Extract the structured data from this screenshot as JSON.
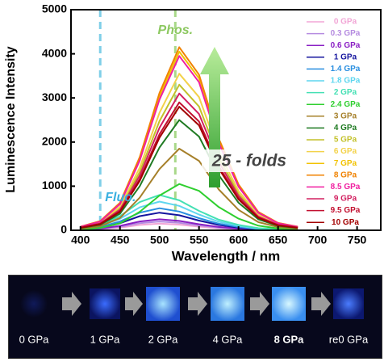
{
  "chart_data": {
    "type": "line",
    "x_label": "Wavelength / nm",
    "y_label": "Luminescence Intensity",
    "x": [
      400,
      425,
      450,
      475,
      500,
      525,
      550,
      575,
      600,
      625,
      650,
      675
    ],
    "xlim": [
      388,
      780
    ],
    "xticks": [
      400,
      450,
      500,
      550,
      600,
      650,
      700,
      750
    ],
    "ylim": [
      0,
      5000
    ],
    "yticks": [
      0,
      1000,
      2000,
      3000,
      4000,
      5000
    ],
    "legend": "right",
    "vlines": [
      {
        "x": 425,
        "label": "Fluo.",
        "color": "#7fcfe8"
      },
      {
        "x": 520,
        "label": "Phos.",
        "color": "#a9d88a"
      }
    ],
    "annotation": "25 - folds",
    "series": [
      {
        "name": "0 GPa",
        "color": "#f2a6d6",
        "values": [
          8,
          23,
          60,
          120,
          150,
          128,
          83,
          45,
          23,
          9,
          5,
          2
        ]
      },
      {
        "name": "0.3 GPa",
        "color": "#b58be0",
        "values": [
          10,
          30,
          80,
          160,
          200,
          170,
          110,
          60,
          30,
          12,
          6,
          2
        ]
      },
      {
        "name": "0.6 GPa",
        "color": "#8a1fc4",
        "values": [
          13,
          38,
          100,
          200,
          250,
          213,
          138,
          75,
          38,
          15,
          8,
          3
        ]
      },
      {
        "name": "1 GPa",
        "color": "#14149e",
        "values": [
          20,
          60,
          160,
          320,
          400,
          340,
          220,
          120,
          60,
          24,
          12,
          4
        ]
      },
      {
        "name": "1.4 GPa",
        "color": "#2a8fe0",
        "values": [
          25,
          75,
          200,
          400,
          500,
          425,
          275,
          150,
          75,
          30,
          15,
          5
        ]
      },
      {
        "name": "1.8 GPa",
        "color": "#5fd6ef",
        "values": [
          33,
          98,
          260,
          520,
          650,
          553,
          358,
          195,
          98,
          39,
          20,
          7
        ]
      },
      {
        "name": "2 GPa",
        "color": "#44e0b4",
        "values": [
          40,
          120,
          320,
          640,
          800,
          680,
          440,
          240,
          120,
          48,
          24,
          8
        ]
      },
      {
        "name": "2.4 GPa",
        "color": "#2fcf2f",
        "values": [
          21,
          53,
          158,
          420,
          788,
          1050,
          893,
          525,
          263,
          105,
          42,
          21
        ]
      },
      {
        "name": "3 GPa",
        "color": "#a6802a",
        "values": [
          37,
          93,
          278,
          740,
          1388,
          1850,
          1573,
          925,
          463,
          185,
          74,
          37
        ]
      },
      {
        "name": "4 GPa",
        "color": "#1f7a22",
        "values": [
          50,
          125,
          375,
          1000,
          1875,
          2500,
          2125,
          1250,
          625,
          250,
          100,
          50
        ]
      },
      {
        "name": "5 GPa",
        "color": "#c3c12a",
        "values": [
          66,
          165,
          495,
          1320,
          2475,
          3300,
          2805,
          1650,
          825,
          330,
          132,
          66
        ]
      },
      {
        "name": "6 GPa",
        "color": "#f3d24a",
        "values": [
          71,
          178,
          533,
          1420,
          2663,
          3550,
          3018,
          1775,
          888,
          355,
          142,
          71
        ]
      },
      {
        "name": "7 GPa",
        "color": "#f2c200",
        "values": [
          81,
          203,
          608,
          1620,
          3038,
          4050,
          3443,
          2025,
          1013,
          405,
          162,
          81
        ]
      },
      {
        "name": "8 GPa",
        "color": "#f08200",
        "values": [
          83,
          208,
          623,
          1660,
          3113,
          4150,
          3528,
          2075,
          1038,
          415,
          166,
          83
        ]
      },
      {
        "name": "8.5 GPa",
        "color": "#f01fa0",
        "values": [
          79,
          198,
          593,
          1580,
          2963,
          3950,
          3358,
          1975,
          988,
          395,
          158,
          79
        ]
      },
      {
        "name": "9 GPa",
        "color": "#d22060",
        "values": [
          62,
          155,
          465,
          1240,
          2325,
          3100,
          2635,
          1550,
          775,
          310,
          124,
          62
        ]
      },
      {
        "name": "9.5 GPa",
        "color": "#c21030",
        "values": [
          58,
          145,
          435,
          1160,
          2175,
          2900,
          2465,
          1450,
          725,
          290,
          116,
          58
        ]
      },
      {
        "name": "10 GPa",
        "color": "#a30000",
        "values": [
          56,
          140,
          420,
          1120,
          2100,
          2800,
          2380,
          1400,
          700,
          280,
          112,
          56
        ]
      }
    ]
  },
  "photo_strip": {
    "labels": [
      "0 GPa",
      "1 GPa",
      "2 GPa",
      "4 GPa",
      "8 GPa",
      "re0 GPa"
    ],
    "highlight_index": 4,
    "highlight_color": "#f5b400"
  }
}
